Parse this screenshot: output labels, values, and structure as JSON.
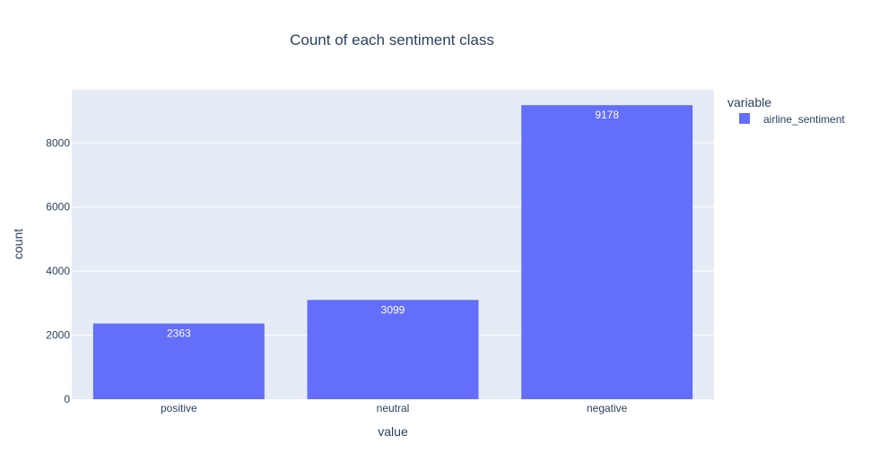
{
  "chart_data": {
    "type": "bar",
    "title": "Count of each sentiment class",
    "xlabel": "value",
    "ylabel": "count",
    "categories": [
      "positive",
      "neutral",
      "negative"
    ],
    "series": [
      {
        "name": "airline_sentiment",
        "values": [
          2363,
          3099,
          9178
        ],
        "data_labels": [
          "2363",
          "3099",
          "9178"
        ],
        "color": "#636efa"
      }
    ],
    "ylim": [
      0,
      9660
    ],
    "yticks": [
      0,
      2000,
      4000,
      6000,
      8000
    ],
    "ytick_labels": [
      "0",
      "2000",
      "4000",
      "6000",
      "8000"
    ],
    "grid": true,
    "legend": {
      "title": "variable",
      "placement": "top-right"
    },
    "colors": {
      "plot_background": "#e5ecf6",
      "grid": "#ffffff",
      "text": "#2a3f5f"
    }
  }
}
